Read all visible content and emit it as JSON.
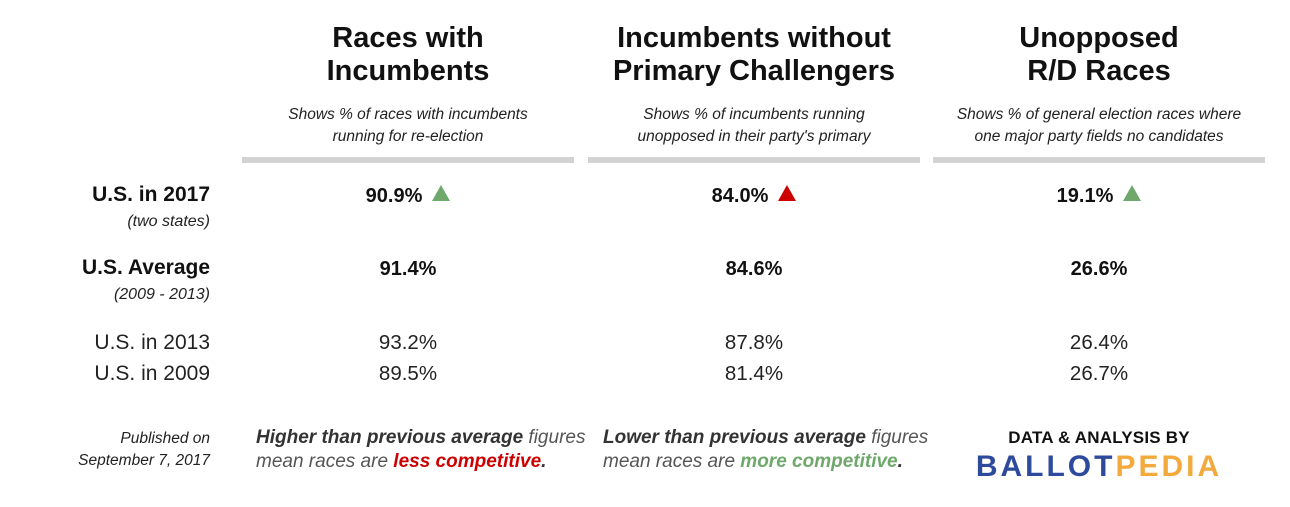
{
  "columns": [
    {
      "title_line1": "Races with",
      "title_line2": "Incumbents",
      "subtitle_line1": "Shows % of races with incumbents",
      "subtitle_line2": "running for re-election"
    },
    {
      "title_line1": "Incumbents without",
      "title_line2": "Primary Challengers",
      "subtitle_line1": "Shows % of incumbents running",
      "subtitle_line2": "unopposed in their party's primary"
    },
    {
      "title_line1": "Unopposed",
      "title_line2": "R/D Races",
      "subtitle_line1": "Shows % of general election races where",
      "subtitle_line2": "one major party fields no candidates"
    }
  ],
  "rows": {
    "us2017": {
      "label": "U.S. in 2017",
      "sublabel": "(two states)",
      "values": [
        "90.9%",
        "84.0%",
        "19.1%"
      ],
      "trend_colors": [
        "#6fa86b",
        "#cc0000",
        "#6fa86b"
      ]
    },
    "average": {
      "label": "U.S. Average",
      "sublabel": "(2009 - 2013)",
      "values": [
        "91.4%",
        "84.6%",
        "26.6%"
      ]
    },
    "us2013": {
      "label": "U.S. in 2013",
      "values": [
        "93.2%",
        "87.8%",
        "26.4%"
      ]
    },
    "us2009": {
      "label": "U.S. in 2009",
      "values": [
        "89.5%",
        "81.4%",
        "26.7%"
      ]
    }
  },
  "footer": {
    "published_line1": "Published on",
    "published_line2": "September 7, 2017",
    "note_higher": {
      "strong": "Higher than previous average",
      "rest1": " figures",
      "line2_start": "mean races are ",
      "emph": "less competitive",
      "end": "."
    },
    "note_lower": {
      "strong": "Lower than previous average",
      "rest1": " figures",
      "line2_start": "mean races are ",
      "emph": "more competitive",
      "end": "."
    },
    "credit_label": "DATA & ANALYSIS BY",
    "logo_part1": "BALLOT",
    "logo_part2": "PEDIA",
    "colors": {
      "logo_blue": "#2e4a9c",
      "logo_orange": "#f3a93c",
      "up_red": "#cc0000",
      "up_green": "#6fa86b"
    }
  }
}
